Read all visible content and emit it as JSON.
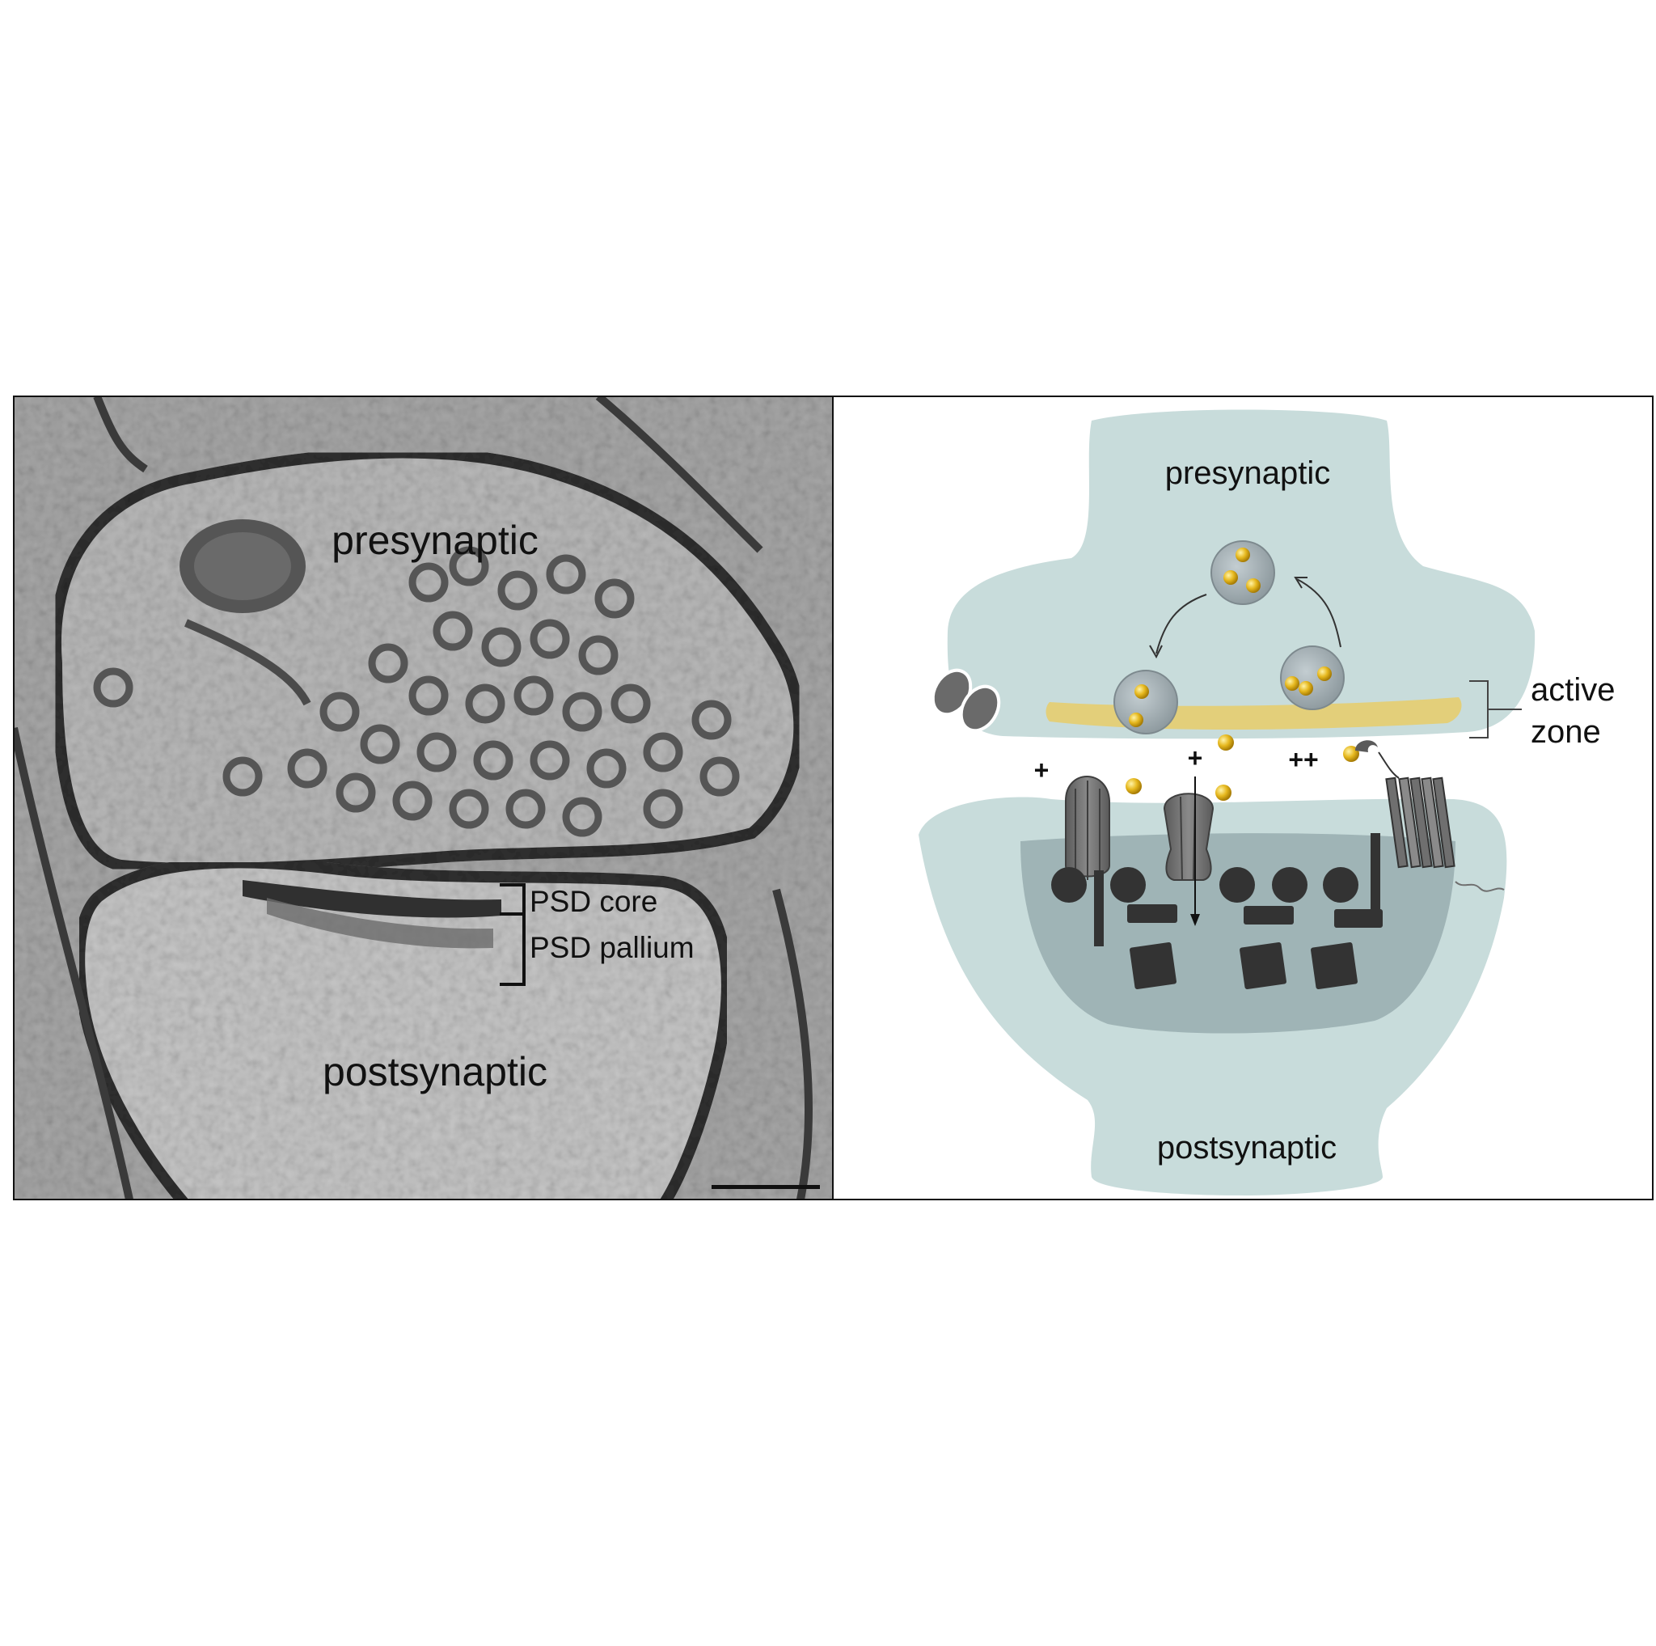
{
  "em_panel": {
    "presynaptic_label": "presynaptic",
    "postsynaptic_label": "postsynaptic",
    "psd_core_label": "PSD core",
    "psd_pallium_label": "PSD pallium"
  },
  "schematic_panel": {
    "presynaptic_label": "presynaptic",
    "postsynaptic_label": "postsynaptic",
    "active_zone_label_line1": "active",
    "active_zone_label_line2": "zone",
    "signs": {
      "left": "+",
      "middle": "+",
      "right": "++"
    }
  },
  "colors": {
    "terminal_fill": "#c8dcdb",
    "psd_fill": "#9fb4b6",
    "active_zone": "#e3cf7a",
    "neurotransmitter": "#e6b81e",
    "vesicle": "#a6b2b7",
    "protein_dark": "#333333",
    "receptor_gray": "#6f6f6f",
    "em_background": "#a7a7a7"
  }
}
